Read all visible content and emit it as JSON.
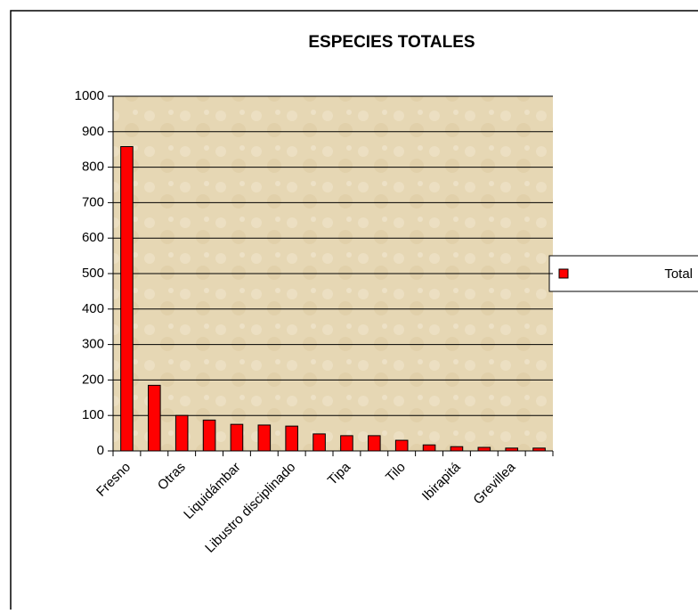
{
  "chart_data": {
    "type": "bar",
    "title": "ESPECIES TOTALES",
    "categories": [
      "Fresno",
      null,
      "Otras",
      null,
      "Liquidámbar",
      null,
      "Libustro disciplinado",
      null,
      "Tipa",
      null,
      "Tilo",
      null,
      "Ibirapitá",
      null,
      "Grevillea",
      null
    ],
    "series": [
      {
        "name": "Total",
        "color": "#ff0000",
        "values": [
          858,
          185,
          100,
          87,
          75,
          73,
          70,
          48,
          43,
          43,
          30,
          17,
          12,
          10,
          8,
          8
        ]
      }
    ],
    "ylim": [
      0,
      1000
    ],
    "yticks": [
      0,
      100,
      200,
      300,
      400,
      500,
      600,
      700,
      800,
      900,
      1000
    ],
    "grid": true,
    "legend": "right"
  }
}
